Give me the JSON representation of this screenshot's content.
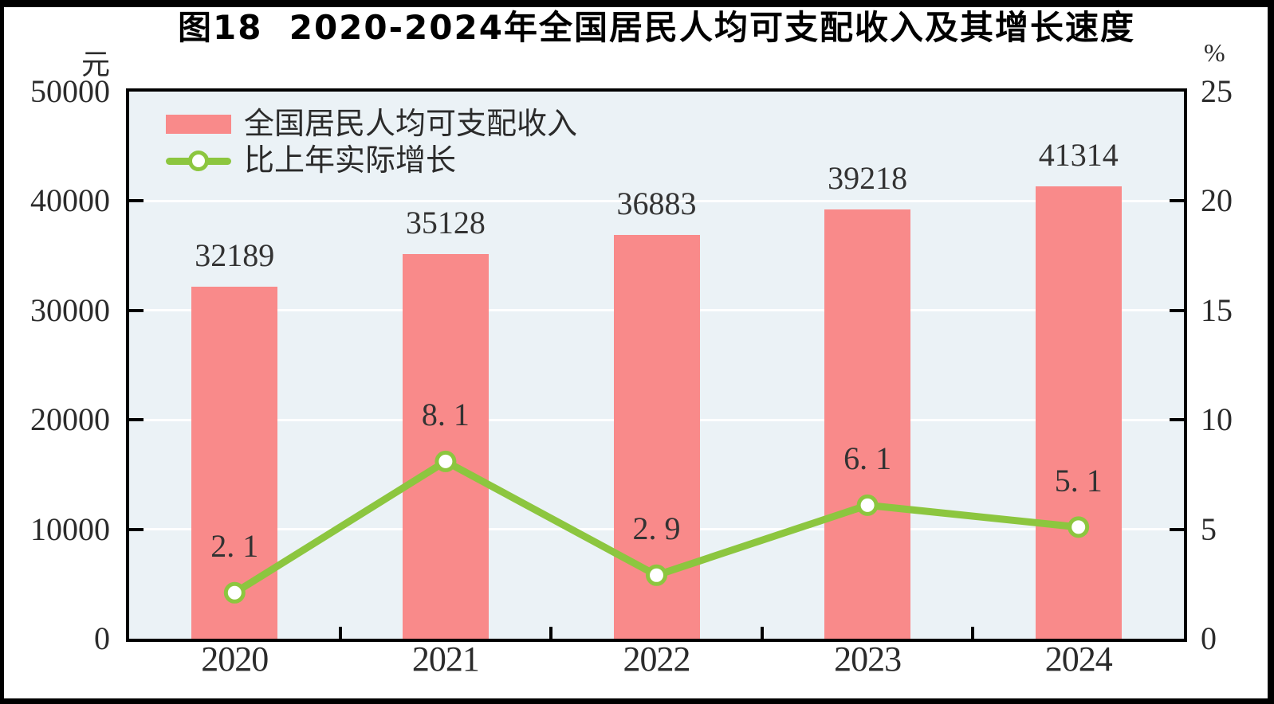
{
  "figure": {
    "title": "图18  2020-2024年全国居民人均可支配收入及其增长速度",
    "left_axis_unit": "元",
    "right_axis_unit": "%"
  },
  "colors": {
    "bar": "#F98A8A",
    "line": "#8CC63F",
    "marker_fill": "#FFFFFF",
    "plot_background": "#EBF2F6",
    "gridline": "#FFFFFF",
    "axis": "#000000",
    "label_text": "#333333"
  },
  "legend": {
    "items": [
      {
        "label": "全国居民人均可支配收入",
        "type": "bar"
      },
      {
        "label": "比上年实际增长",
        "type": "line"
      }
    ]
  },
  "chart_data": {
    "type": "bar+line",
    "title": "图18  2020-2024年全国居民人均可支配收入及其增长速度",
    "categories": [
      "2020",
      "2021",
      "2022",
      "2023",
      "2024"
    ],
    "series": [
      {
        "name": "全国居民人均可支配收入",
        "type": "bar",
        "axis": "left",
        "unit": "元",
        "values": [
          32189,
          35128,
          36883,
          39218,
          41314
        ],
        "labels": [
          "32189",
          "35128",
          "36883",
          "39218",
          "41314"
        ]
      },
      {
        "name": "比上年实际增长",
        "type": "line",
        "axis": "right",
        "unit": "%",
        "values": [
          2.1,
          8.1,
          2.9,
          6.1,
          5.1
        ],
        "labels": [
          "2. 1",
          "8. 1",
          "2. 9",
          "6. 1",
          "5. 1"
        ]
      }
    ],
    "left_axis": {
      "unit": "元",
      "min": 0,
      "max": 50000,
      "step": 10000,
      "tick_values": [
        0,
        10000,
        20000,
        30000,
        40000,
        50000
      ],
      "tick_labels": [
        "0",
        "10000",
        "20000",
        "30000",
        "40000",
        "50000"
      ]
    },
    "right_axis": {
      "unit": "%",
      "min": 0,
      "max": 25,
      "step": 5,
      "tick_values": [
        0,
        5,
        10,
        15,
        20,
        25
      ],
      "tick_labels": [
        "0",
        "5",
        "10",
        "15",
        "20",
        "25"
      ]
    },
    "grid": true,
    "gridline_orientation": "horizontal",
    "legend_position": "top-left-inside"
  }
}
